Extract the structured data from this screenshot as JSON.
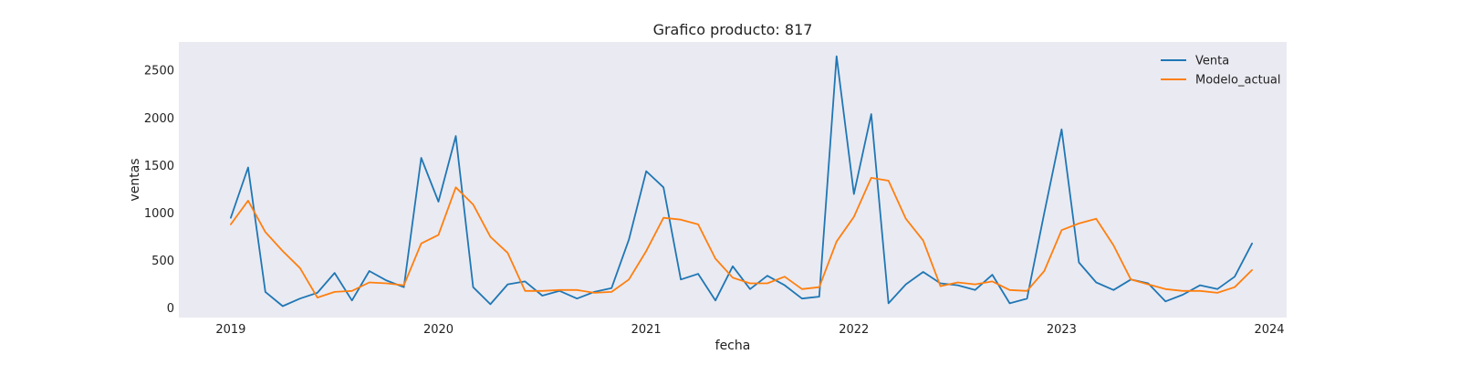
{
  "chart_data": {
    "type": "line",
    "title": "Grafico producto: 817",
    "xlabel": "fecha",
    "ylabel": "ventas",
    "xlim": [
      "2018-10-01",
      "2024-02-01"
    ],
    "ylim": [
      -100,
      2800
    ],
    "x_ticks": [
      "2019",
      "2020",
      "2021",
      "2022",
      "2023",
      "2024"
    ],
    "y_ticks": [
      0,
      500,
      1000,
      1500,
      2000,
      2500
    ],
    "legend_position": "top-right",
    "grid": false,
    "background": "#eaeaf2",
    "x": [
      "2019-01",
      "2019-02",
      "2019-03",
      "2019-04",
      "2019-05",
      "2019-06",
      "2019-07",
      "2019-08",
      "2019-09",
      "2019-10",
      "2019-11",
      "2019-12",
      "2020-01",
      "2020-02",
      "2020-03",
      "2020-04",
      "2020-05",
      "2020-06",
      "2020-07",
      "2020-08",
      "2020-09",
      "2020-10",
      "2020-11",
      "2020-12",
      "2021-01",
      "2021-02",
      "2021-03",
      "2021-04",
      "2021-05",
      "2021-06",
      "2021-07",
      "2021-08",
      "2021-09",
      "2021-10",
      "2021-11",
      "2021-12",
      "2022-01",
      "2022-02",
      "2022-03",
      "2022-04",
      "2022-05",
      "2022-06",
      "2022-07",
      "2022-08",
      "2022-09",
      "2022-10",
      "2022-11",
      "2022-12",
      "2023-01",
      "2023-02",
      "2023-03",
      "2023-04",
      "2023-05",
      "2023-06",
      "2023-07",
      "2023-08",
      "2023-09",
      "2023-10",
      "2023-11",
      "2023-12"
    ],
    "series": [
      {
        "name": "Venta",
        "color": "#1f77b4",
        "values": [
          950,
          1480,
          170,
          20,
          100,
          160,
          370,
          80,
          390,
          290,
          220,
          1580,
          1120,
          1810,
          220,
          40,
          250,
          280,
          130,
          180,
          100,
          170,
          210,
          720,
          1440,
          1270,
          300,
          360,
          80,
          440,
          200,
          340,
          240,
          100,
          120,
          2650,
          1200,
          2040,
          50,
          250,
          380,
          260,
          240,
          190,
          350,
          50,
          100,
          1000,
          1880,
          480,
          270,
          190,
          300,
          260,
          70,
          140,
          240,
          200,
          330,
          680
        ]
      },
      {
        "name": "Modelo_actual",
        "color": "#ff7f0e",
        "values": [
          880,
          1130,
          800,
          600,
          420,
          110,
          170,
          180,
          270,
          260,
          240,
          680,
          770,
          1270,
          1090,
          750,
          580,
          180,
          180,
          190,
          190,
          160,
          170,
          300,
          600,
          950,
          930,
          880,
          520,
          320,
          260,
          260,
          330,
          200,
          220,
          700,
          960,
          1370,
          1340,
          940,
          710,
          230,
          270,
          250,
          280,
          190,
          180,
          390,
          820,
          890,
          940,
          660,
          300,
          250,
          200,
          180,
          180,
          160,
          220,
          400
        ]
      }
    ]
  }
}
